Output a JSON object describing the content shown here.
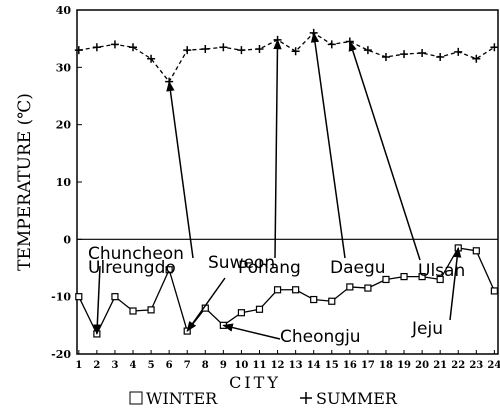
{
  "chart_data": {
    "type": "line",
    "xlabel": "CITY",
    "ylabel": "TEMPERATURE (℃)",
    "x": [
      1,
      2,
      3,
      4,
      5,
      6,
      7,
      8,
      9,
      10,
      11,
      12,
      13,
      14,
      15,
      16,
      17,
      18,
      19,
      20,
      21,
      22,
      23,
      24
    ],
    "xlim": [
      0.9,
      24.2
    ],
    "xticks": [
      1,
      2,
      3,
      4,
      5,
      6,
      7,
      8,
      9,
      10,
      11,
      12,
      13,
      14,
      15,
      16,
      17,
      18,
      19,
      20,
      21,
      22,
      23,
      24
    ],
    "ylim": [
      -20,
      40
    ],
    "yticks": [
      -20,
      -10,
      0,
      10,
      20,
      30,
      40
    ],
    "series": [
      {
        "name": "WINTER",
        "color": "#000000",
        "marker": "square",
        "dashed": false,
        "values": [
          -10,
          -16.5,
          -10,
          -12.5,
          -12.3,
          -5.3,
          -16,
          -12,
          -15,
          -12.8,
          -12.2,
          -8.8,
          -8.8,
          -10.5,
          -10.8,
          -8.3,
          -8.5,
          -7,
          -6.5,
          -6.5,
          -7,
          -1.5,
          -2,
          -9
        ]
      },
      {
        "name": "SUMMER",
        "color": "#000000",
        "marker": "plus",
        "dashed": true,
        "values": [
          33,
          33.5,
          34,
          33.5,
          31.5,
          27.5,
          33,
          33.2,
          33.5,
          33,
          33.2,
          34.8,
          32.8,
          36,
          34,
          34.5,
          33,
          31.8,
          32.3,
          32.5,
          31.8,
          32.7,
          31.5,
          33.5
        ]
      }
    ],
    "annotations": [
      "Ulreungdo",
      "Pohang",
      "Daegu",
      "Ulsan",
      "Chuncheon",
      "Suweon",
      "Cheongju",
      "Jeju"
    ]
  }
}
